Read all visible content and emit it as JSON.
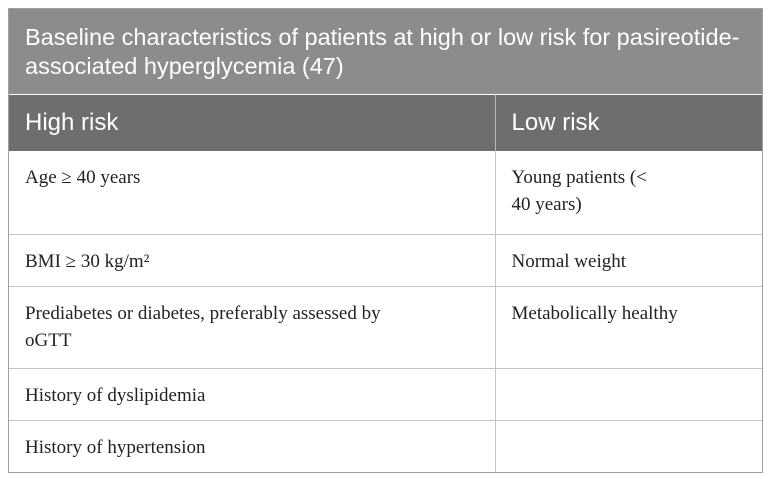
{
  "table": {
    "caption": "Baseline characteristics of patients at high or low risk for pasireotide-associated hyperglycemia (47)",
    "headers": [
      "High risk",
      "Low risk"
    ],
    "rows": [
      [
        "Age ≥ 40 years",
        "Young patients (< 40 years)"
      ],
      [
        "BMI ≥ 30 kg/m²",
        "Normal weight"
      ],
      [
        "Prediabetes or diabetes, preferably assessed by oGTT",
        "Metabolically healthy"
      ],
      [
        "History of dyslipidemia",
        ""
      ],
      [
        "History of hypertension",
        ""
      ]
    ]
  }
}
